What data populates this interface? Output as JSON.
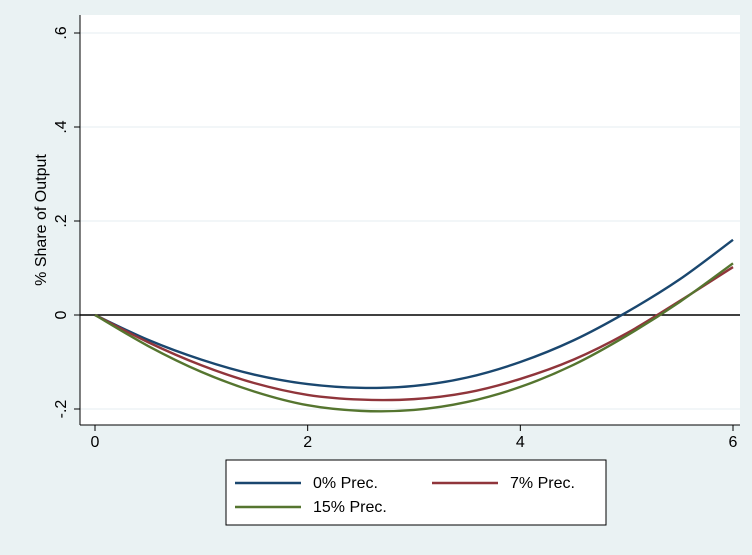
{
  "chart_data": {
    "type": "line",
    "title": "",
    "xlabel": "",
    "ylabel": "% Share of Output",
    "xlim": [
      0,
      6
    ],
    "ylim": [
      -0.2,
      0.6
    ],
    "x_ticks": [
      0,
      2,
      4,
      6
    ],
    "x_tick_labels": [
      "0",
      "2",
      "4",
      "6"
    ],
    "y_ticks": [
      -0.2,
      0,
      0.2,
      0.4,
      0.6
    ],
    "y_tick_labels": [
      "-.2",
      "0",
      ".2",
      ".4",
      ".6"
    ],
    "grid": true,
    "reference_line_y": 0,
    "legend_position": "bottom",
    "x": [
      0,
      0.5,
      1,
      1.5,
      2,
      2.5,
      3,
      3.5,
      4,
      4.5,
      5,
      5.5,
      6
    ],
    "series": [
      {
        "name": "0% Prec.",
        "color": "#1a476f",
        "values": [
          0,
          -0.053,
          -0.095,
          -0.127,
          -0.147,
          -0.155,
          -0.151,
          -0.133,
          -0.1,
          -0.054,
          0.006,
          0.076,
          0.16
        ]
      },
      {
        "name": "7% Prec.",
        "color": "#90353b",
        "values": [
          0,
          -0.058,
          -0.107,
          -0.145,
          -0.17,
          -0.18,
          -0.179,
          -0.165,
          -0.136,
          -0.095,
          -0.039,
          0.03,
          0.102
        ]
      },
      {
        "name": "15% Prec.",
        "color": "#55752f",
        "values": [
          0,
          -0.066,
          -0.121,
          -0.163,
          -0.192,
          -0.204,
          -0.202,
          -0.185,
          -0.153,
          -0.106,
          -0.044,
          0.028,
          0.11
        ]
      }
    ]
  }
}
